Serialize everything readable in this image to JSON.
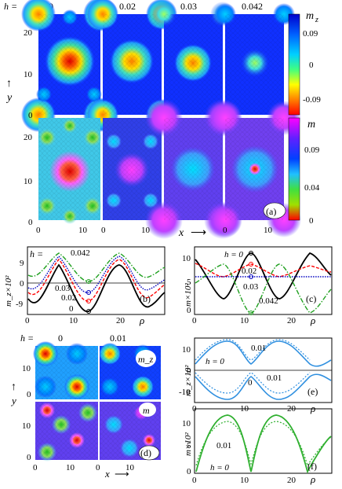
{
  "figure_a": {
    "h_label": "h =",
    "h_values": [
      "0",
      "0.02",
      "0.03",
      "0.042"
    ],
    "y_label": "y",
    "x_label": "x",
    "y_ticks": [
      "20",
      "10",
      "0"
    ],
    "y_ticks_lower": [
      "20",
      "10",
      "0"
    ],
    "x_ticks": [
      "0",
      "10",
      "0",
      "10",
      "0",
      "10"
    ],
    "panel_label": "(a)",
    "colorbar_top": {
      "symbol": "m",
      "subscript": "z",
      "ticks": [
        "0.09",
        "0",
        "-0.09"
      ],
      "colors": [
        "#0000cc",
        "#00c8ff",
        "#ffff00",
        "#ff0000"
      ]
    },
    "colorbar_bottom": {
      "symbol": "m",
      "ticks": [
        "0.09",
        "0.04",
        "0"
      ],
      "colors": [
        "#ff00ff",
        "#0033ff",
        "#33ccff",
        "#33cc33",
        "#ff0000"
      ]
    }
  },
  "figure_b": {
    "h_label": "h =",
    "y_label": "m_z×10²",
    "y_ticks": [
      "9",
      "0",
      "-9"
    ],
    "x_ticks": [
      "0",
      "10",
      "20"
    ],
    "x_label": "ρ",
    "panel_label": "(b)",
    "curve_labels": [
      "0.042",
      "0.03",
      "0.02",
      "0"
    ]
  },
  "figure_c": {
    "y_label": "m×10²",
    "y_ticks": [
      "10",
      "5",
      "0"
    ],
    "x_ticks": [
      "0",
      "10",
      "20"
    ],
    "x_label": "ρ",
    "panel_label": "(c)",
    "curve_labels": [
      "h = 0",
      "0.02",
      "0.03",
      "0.042"
    ]
  },
  "figure_d": {
    "h_label": "h =",
    "h_values": [
      "0",
      "0.01"
    ],
    "y_ticks_top": [
      "10",
      "0"
    ],
    "y_ticks_bottom": [
      "10",
      "0"
    ],
    "x_ticks": [
      "0",
      "10",
      "0",
      "10"
    ],
    "x_label": "x",
    "y_label": "y",
    "inset_top": "m_z",
    "inset_bottom": "m",
    "panel_label": "(d)"
  },
  "figure_e": {
    "y_label": "m_z×10²",
    "y_ticks": [
      "10",
      "0",
      "-10"
    ],
    "x_ticks": [
      "0",
      "10",
      "20"
    ],
    "x_label": "ρ",
    "panel_label": "(e)",
    "curve_labels": [
      "0.01",
      "h = 0",
      "0.01",
      "0"
    ]
  },
  "figure_f": {
    "y_label": "m×10²",
    "y_ticks": [
      "10",
      "5",
      "0"
    ],
    "x_ticks": [
      "0",
      "10",
      "20"
    ],
    "x_label": "ρ",
    "panel_label": "(f)",
    "curve_labels": [
      "0.01",
      "h = 0"
    ]
  }
}
